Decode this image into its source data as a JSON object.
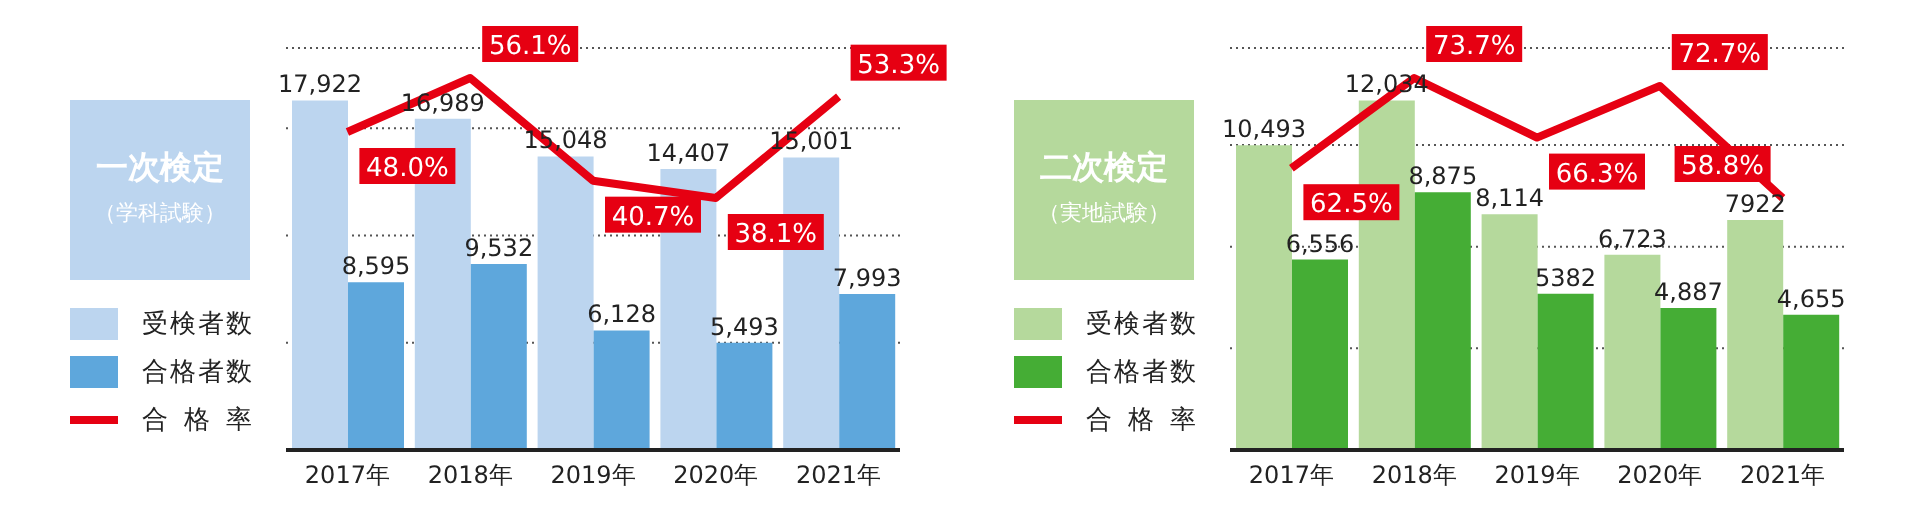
{
  "chart_data": [
    {
      "type": "bar",
      "title": "一次検定",
      "subtitle": "（学科試験）",
      "categories": [
        "2017年",
        "2018年",
        "2019年",
        "2020年",
        "2021年"
      ],
      "grid": "y",
      "legend": "left",
      "series": [
        {
          "name": "受検者数",
          "color": "#bcd5ef",
          "values": [
            17922,
            16989,
            15048,
            14407,
            15001
          ],
          "value_labels": [
            "17,922",
            "16,989",
            "15,048",
            "14,407",
            "15,001"
          ]
        },
        {
          "name": "合格者数",
          "color": "#5ea7dc",
          "values": [
            8595,
            9532,
            6128,
            5493,
            7993
          ],
          "value_labels": [
            "8,595",
            "9,532",
            "6,128",
            "5,493",
            "7,993"
          ]
        },
        {
          "name": "合格率",
          "type": "line",
          "axis": "y2",
          "color": "#e60012",
          "values": [
            48.0,
            56.1,
            40.7,
            38.1,
            53.3
          ],
          "value_labels": [
            "48.0%",
            "56.1%",
            "40.7%",
            "38.1%",
            "53.3%"
          ]
        }
      ]
    },
    {
      "type": "bar",
      "title": "二次検定",
      "subtitle": "（実地試験）",
      "categories": [
        "2017年",
        "2018年",
        "2019年",
        "2020年",
        "2021年"
      ],
      "grid": "y",
      "legend": "left",
      "series": [
        {
          "name": "受検者数",
          "color": "#b5d99c",
          "values": [
            10493,
            12034,
            8114,
            6723,
            7922
          ],
          "value_labels": [
            "10,493",
            "12,034",
            "8,114",
            "6,723",
            "7922"
          ]
        },
        {
          "name": "合格者数",
          "color": "#45ad35",
          "values": [
            6556,
            8875,
            5382,
            4887,
            4655
          ],
          "value_labels": [
            "6,556",
            "8,875",
            "5382",
            "4,887",
            "4,655"
          ]
        },
        {
          "name": "合格率",
          "type": "line",
          "axis": "y2",
          "color": "#e60012",
          "values": [
            62.5,
            73.7,
            66.3,
            72.7,
            58.8
          ],
          "value_labels": [
            "62.5%",
            "73.7%",
            "66.3%",
            "72.7%",
            "58.8%"
          ]
        }
      ]
    }
  ]
}
